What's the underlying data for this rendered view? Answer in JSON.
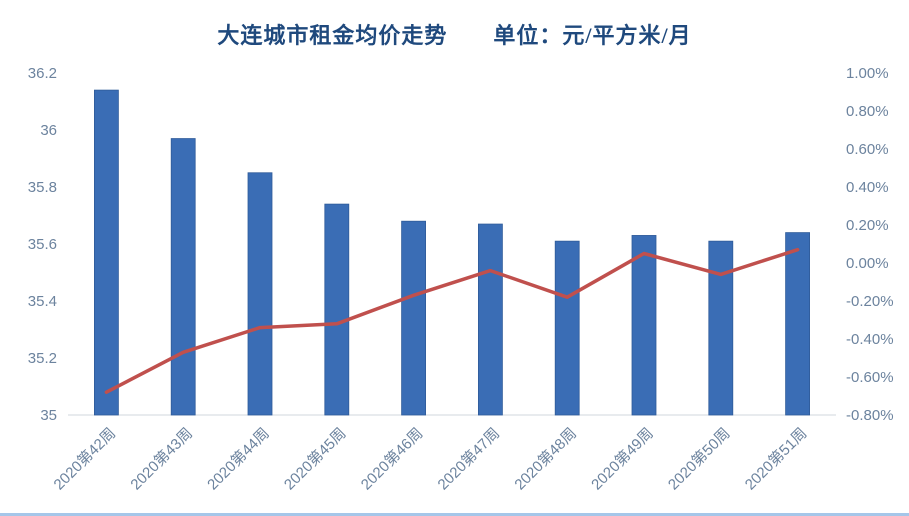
{
  "chart_data": {
    "type": "bar",
    "title": "大连城市租金均价走势　　单位：元/平方米/月",
    "categories": [
      "2020第42周",
      "2020第43周",
      "2020第44周",
      "2020第45周",
      "2020第46周",
      "2020第47周",
      "2020第48周",
      "2020第49周",
      "2020第50周",
      "2020第51周"
    ],
    "series": [
      {
        "id": "rent-average-price",
        "type": "bar",
        "axis": "left",
        "values": [
          36.14,
          35.97,
          35.85,
          35.74,
          35.68,
          35.67,
          35.61,
          35.63,
          35.61,
          35.64
        ]
      },
      {
        "id": "week-over-week-change-pct",
        "type": "line",
        "axis": "right",
        "values": [
          -0.68,
          -0.47,
          -0.34,
          -0.32,
          -0.17,
          -0.04,
          -0.18,
          0.05,
          -0.06,
          0.07
        ]
      }
    ],
    "left_axis": {
      "min": 35,
      "max": 36.2,
      "step": 0.2,
      "ticks": [
        "36.2",
        "36",
        "35.8",
        "35.6",
        "35.4",
        "35.2",
        "35"
      ]
    },
    "right_axis": {
      "min": -0.8,
      "max": 1.0,
      "step": 0.2,
      "ticks": [
        "1.00%",
        "0.80%",
        "0.60%",
        "0.40%",
        "0.20%",
        "0.00%",
        "-0.20%",
        "-0.40%",
        "-0.60%",
        "-0.80%"
      ]
    },
    "grid": "off",
    "legend": "none",
    "colors": {
      "bar": "#3A6DB5",
      "bar_border": "#2F5B99",
      "line": "#C0504D",
      "title": "#1F497D",
      "axis_label": "#6C839E",
      "axis_line": "#D0D7DE",
      "bottom_border": "#A5C6E9"
    }
  }
}
